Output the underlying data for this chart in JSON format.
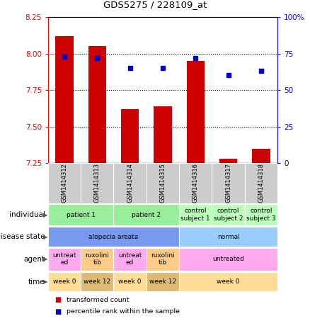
{
  "title": "GDS5275 / 228109_at",
  "samples": [
    "GSM1414312",
    "GSM1414313",
    "GSM1414314",
    "GSM1414315",
    "GSM1414316",
    "GSM1414317",
    "GSM1414318"
  ],
  "transformed_count": [
    8.12,
    8.05,
    7.62,
    7.64,
    7.95,
    7.28,
    7.35
  ],
  "percentile_rank": [
    73,
    72,
    65,
    65,
    72,
    60,
    63
  ],
  "ylim_left": [
    7.25,
    8.25
  ],
  "ylim_right": [
    0,
    100
  ],
  "yticks_left": [
    7.25,
    7.5,
    7.75,
    8.0,
    8.25
  ],
  "yticks_right": [
    0,
    25,
    50,
    75,
    100
  ],
  "bar_color": "#cc0000",
  "dot_color": "#0000cc",
  "sample_label_color": "#cccccc",
  "annotations": {
    "individual": {
      "label": "individual",
      "groups": [
        {
          "span": [
            0,
            1
          ],
          "text": "patient 1",
          "color": "#99ee99"
        },
        {
          "span": [
            2,
            3
          ],
          "text": "patient 2",
          "color": "#99ee99"
        },
        {
          "span": [
            4,
            4
          ],
          "text": "control\nsubject 1",
          "color": "#bbffbb"
        },
        {
          "span": [
            5,
            5
          ],
          "text": "control\nsubject 2",
          "color": "#bbffbb"
        },
        {
          "span": [
            6,
            6
          ],
          "text": "control\nsubject 3",
          "color": "#bbffbb"
        }
      ]
    },
    "disease_state": {
      "label": "disease state",
      "groups": [
        {
          "span": [
            0,
            3
          ],
          "text": "alopecia areata",
          "color": "#7799ee"
        },
        {
          "span": [
            4,
            6
          ],
          "text": "normal",
          "color": "#99ccff"
        }
      ]
    },
    "agent": {
      "label": "agent",
      "groups": [
        {
          "span": [
            0,
            0
          ],
          "text": "untreat\ned",
          "color": "#ffaaee"
        },
        {
          "span": [
            1,
            1
          ],
          "text": "ruxolini\ntib",
          "color": "#ffcc88"
        },
        {
          "span": [
            2,
            2
          ],
          "text": "untreat\ned",
          "color": "#ffaaee"
        },
        {
          "span": [
            3,
            3
          ],
          "text": "ruxolini\ntib",
          "color": "#ffcc88"
        },
        {
          "span": [
            4,
            6
          ],
          "text": "untreated",
          "color": "#ffaaee"
        }
      ]
    },
    "time": {
      "label": "time",
      "groups": [
        {
          "span": [
            0,
            0
          ],
          "text": "week 0",
          "color": "#ffdd99"
        },
        {
          "span": [
            1,
            1
          ],
          "text": "week 12",
          "color": "#ddbb77"
        },
        {
          "span": [
            2,
            2
          ],
          "text": "week 0",
          "color": "#ffdd99"
        },
        {
          "span": [
            3,
            3
          ],
          "text": "week 12",
          "color": "#ddbb77"
        },
        {
          "span": [
            4,
            6
          ],
          "text": "week 0",
          "color": "#ffdd99"
        }
      ]
    }
  }
}
